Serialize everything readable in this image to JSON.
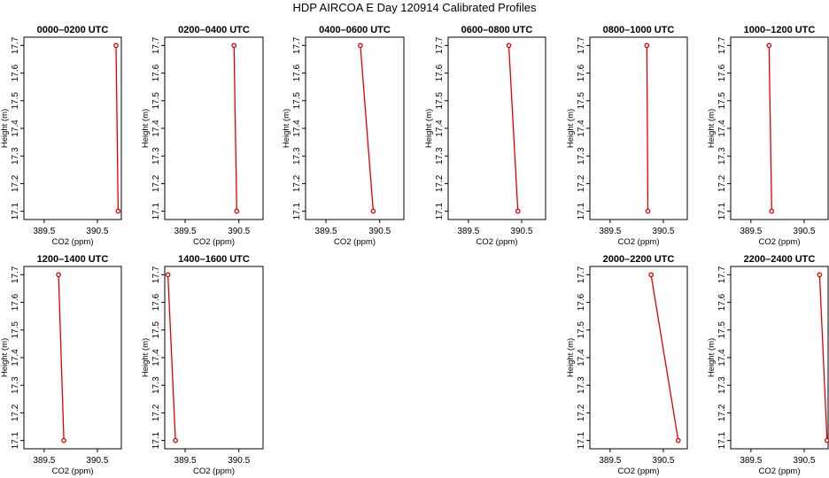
{
  "title": "HDP AIRCOA E  Day 120914  Calibrated Profiles",
  "colors": {
    "series": "#e00000",
    "axes": "#000000",
    "background": "#ffffff"
  },
  "chart_data": [
    {
      "type": "line",
      "title": "0000–0200 UTC",
      "xlabel": "CO2 (ppm)",
      "ylabel": "Height (m)",
      "xlim": [
        389.12,
        390.95
      ],
      "ylim": [
        17.07,
        17.73
      ],
      "xticks": [
        "389.5",
        "390.5"
      ],
      "xtick_values": [
        389.5,
        390.5
      ],
      "yticks": [
        "17.1",
        "17.2",
        "17.3",
        "17.4",
        "17.5",
        "17.6",
        "17.7"
      ],
      "ytick_values": [
        17.1,
        17.2,
        17.3,
        17.4,
        17.5,
        17.6,
        17.7
      ],
      "series": [
        {
          "points": [
            {
              "x": 390.85,
              "y": 17.7
            },
            {
              "x": 390.89,
              "y": 17.1
            }
          ]
        }
      ]
    },
    {
      "type": "line",
      "title": "0200–0400 UTC",
      "xlabel": "CO2 (ppm)",
      "ylabel": "Height (m)",
      "xlim": [
        389.12,
        390.95
      ],
      "ylim": [
        17.07,
        17.73
      ],
      "xticks": [
        "389.5",
        "390.5"
      ],
      "xtick_values": [
        389.5,
        390.5
      ],
      "yticks": [
        "17.1",
        "17.2",
        "17.3",
        "17.4",
        "17.5",
        "17.6",
        "17.7"
      ],
      "ytick_values": [
        17.1,
        17.2,
        17.3,
        17.4,
        17.5,
        17.6,
        17.7
      ],
      "series": [
        {
          "points": [
            {
              "x": 390.41,
              "y": 17.7
            },
            {
              "x": 390.46,
              "y": 17.1
            }
          ]
        }
      ]
    },
    {
      "type": "line",
      "title": "0400–0600 UTC",
      "xlabel": "CO2 (ppm)",
      "ylabel": "Height (m)",
      "xlim": [
        389.12,
        390.95
      ],
      "ylim": [
        17.07,
        17.73
      ],
      "xticks": [
        "389.5",
        "390.5"
      ],
      "xtick_values": [
        389.5,
        390.5
      ],
      "yticks": [
        "17.1",
        "17.2",
        "17.3",
        "17.4",
        "17.5",
        "17.6",
        "17.7"
      ],
      "ytick_values": [
        17.1,
        17.2,
        17.3,
        17.4,
        17.5,
        17.6,
        17.7
      ],
      "series": [
        {
          "points": [
            {
              "x": 390.14,
              "y": 17.7
            },
            {
              "x": 390.38,
              "y": 17.1
            }
          ]
        }
      ]
    },
    {
      "type": "line",
      "title": "0600–0800 UTC",
      "xlabel": "CO2 (ppm)",
      "ylabel": "Height (m)",
      "xlim": [
        389.12,
        390.95
      ],
      "ylim": [
        17.07,
        17.73
      ],
      "xticks": [
        "389.5",
        "390.5"
      ],
      "xtick_values": [
        389.5,
        390.5
      ],
      "yticks": [
        "17.1",
        "17.2",
        "17.3",
        "17.4",
        "17.5",
        "17.6",
        "17.7"
      ],
      "ytick_values": [
        17.1,
        17.2,
        17.3,
        17.4,
        17.5,
        17.6,
        17.7
      ],
      "series": [
        {
          "points": [
            {
              "x": 390.26,
              "y": 17.7
            },
            {
              "x": 390.43,
              "y": 17.1
            }
          ]
        }
      ]
    },
    {
      "type": "line",
      "title": "0800–1000 UTC",
      "xlabel": "CO2 (ppm)",
      "ylabel": "Height (m)",
      "xlim": [
        389.12,
        390.95
      ],
      "ylim": [
        17.07,
        17.73
      ],
      "xticks": [
        "389.5",
        "390.5"
      ],
      "xtick_values": [
        389.5,
        390.5
      ],
      "yticks": [
        "17.1",
        "17.2",
        "17.3",
        "17.4",
        "17.5",
        "17.6",
        "17.7"
      ],
      "ytick_values": [
        17.1,
        17.2,
        17.3,
        17.4,
        17.5,
        17.6,
        17.7
      ],
      "series": [
        {
          "points": [
            {
              "x": 390.19,
              "y": 17.7
            },
            {
              "x": 390.21,
              "y": 17.1
            }
          ]
        }
      ]
    },
    {
      "type": "line",
      "title": "1000–1200 UTC",
      "xlabel": "CO2 (ppm)",
      "ylabel": "Height (m)",
      "xlim": [
        389.12,
        390.95
      ],
      "ylim": [
        17.07,
        17.73
      ],
      "xticks": [
        "389.5",
        "390.5"
      ],
      "xtick_values": [
        389.5,
        390.5
      ],
      "yticks": [
        "17.1",
        "17.2",
        "17.3",
        "17.4",
        "17.5",
        "17.6",
        "17.7"
      ],
      "ytick_values": [
        17.1,
        17.2,
        17.3,
        17.4,
        17.5,
        17.6,
        17.7
      ],
      "series": [
        {
          "points": [
            {
              "x": 389.84,
              "y": 17.7
            },
            {
              "x": 389.89,
              "y": 17.1
            }
          ]
        }
      ]
    },
    {
      "type": "line",
      "title": "1200–1400 UTC",
      "xlabel": "CO2 (ppm)",
      "ylabel": "Height (m)",
      "xlim": [
        389.12,
        390.95
      ],
      "ylim": [
        17.07,
        17.73
      ],
      "xticks": [
        "389.5",
        "390.5"
      ],
      "xtick_values": [
        389.5,
        390.5
      ],
      "yticks": [
        "17.1",
        "17.2",
        "17.3",
        "17.4",
        "17.5",
        "17.6",
        "17.7"
      ],
      "ytick_values": [
        17.1,
        17.2,
        17.3,
        17.4,
        17.5,
        17.6,
        17.7
      ],
      "series": [
        {
          "points": [
            {
              "x": 389.77,
              "y": 17.7
            },
            {
              "x": 389.87,
              "y": 17.1
            }
          ]
        }
      ]
    },
    {
      "type": "line",
      "title": "1400–1600 UTC",
      "xlabel": "CO2 (ppm)",
      "ylabel": "Height (m)",
      "xlim": [
        389.12,
        390.95
      ],
      "ylim": [
        17.07,
        17.73
      ],
      "xticks": [
        "389.5",
        "390.5"
      ],
      "xtick_values": [
        389.5,
        390.5
      ],
      "yticks": [
        "17.1",
        "17.2",
        "17.3",
        "17.4",
        "17.5",
        "17.6",
        "17.7"
      ],
      "ytick_values": [
        17.1,
        17.2,
        17.3,
        17.4,
        17.5,
        17.6,
        17.7
      ],
      "series": [
        {
          "points": [
            {
              "x": 389.18,
              "y": 17.7
            },
            {
              "x": 389.32,
              "y": 17.1
            }
          ]
        }
      ]
    },
    {
      "type": "line",
      "title": "2000–2200 UTC",
      "xlabel": "CO2 (ppm)",
      "ylabel": "Height (m)",
      "xlim": [
        389.12,
        390.95
      ],
      "ylim": [
        17.07,
        17.73
      ],
      "xticks": [
        "389.5",
        "390.5"
      ],
      "xtick_values": [
        389.5,
        390.5
      ],
      "yticks": [
        "17.1",
        "17.2",
        "17.3",
        "17.4",
        "17.5",
        "17.6",
        "17.7"
      ],
      "ytick_values": [
        17.1,
        17.2,
        17.3,
        17.4,
        17.5,
        17.6,
        17.7
      ],
      "series": [
        {
          "points": [
            {
              "x": 390.27,
              "y": 17.7
            },
            {
              "x": 390.78,
              "y": 17.1
            }
          ]
        }
      ]
    },
    {
      "type": "line",
      "title": "2200–2400 UTC",
      "xlabel": "CO2 (ppm)",
      "ylabel": "Height (m)",
      "xlim": [
        389.12,
        390.95
      ],
      "ylim": [
        17.07,
        17.73
      ],
      "xticks": [
        "389.5",
        "390.5"
      ],
      "xtick_values": [
        389.5,
        390.5
      ],
      "yticks": [
        "17.1",
        "17.2",
        "17.3",
        "17.4",
        "17.5",
        "17.6",
        "17.7"
      ],
      "ytick_values": [
        17.1,
        17.2,
        17.3,
        17.4,
        17.5,
        17.6,
        17.7
      ],
      "series": [
        {
          "points": [
            {
              "x": 390.79,
              "y": 17.7
            },
            {
              "x": 390.93,
              "y": 17.1
            }
          ]
        }
      ]
    }
  ]
}
